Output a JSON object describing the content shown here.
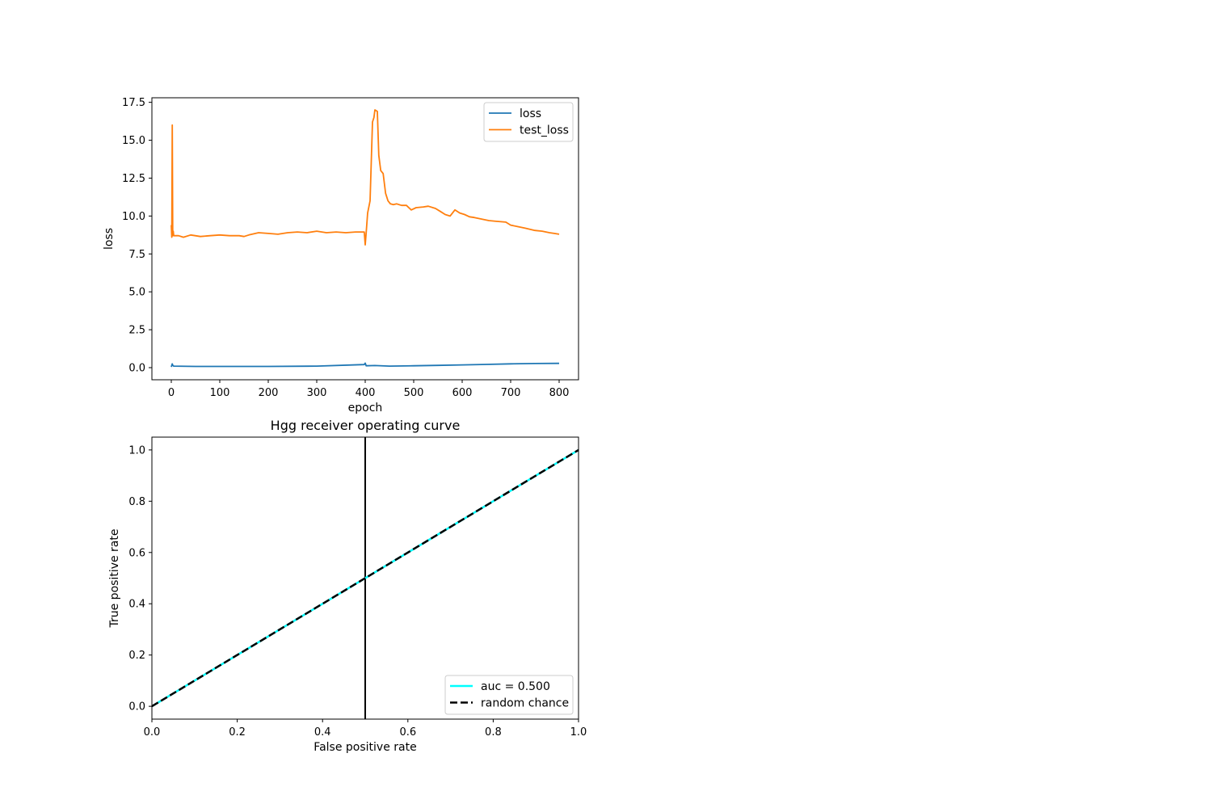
{
  "chart_data": [
    {
      "type": "line",
      "title": "",
      "xlabel": "epoch",
      "ylabel": "loss",
      "xlim": [
        -40,
        840
      ],
      "ylim": [
        -0.8,
        17.8
      ],
      "xticks": [
        0,
        100,
        200,
        300,
        400,
        500,
        600,
        700,
        800
      ],
      "xtick_labels": [
        "0",
        "100",
        "200",
        "300",
        "400",
        "500",
        "600",
        "700",
        "800"
      ],
      "yticks": [
        0,
        2.5,
        5,
        7.5,
        10,
        12.5,
        15,
        17.5
      ],
      "ytick_labels": [
        "0.0",
        "2.5",
        "5.0",
        "7.5",
        "10.0",
        "12.5",
        "15.0",
        "17.5"
      ],
      "grid": false,
      "legend_position": "upper right",
      "series": [
        {
          "name": "loss",
          "color": "#1f77b4",
          "x": [
            0,
            2,
            3,
            5,
            50,
            100,
            200,
            300,
            398,
            400,
            402,
            420,
            450,
            500,
            550,
            600,
            650,
            700,
            750,
            800
          ],
          "y": [
            0.05,
            0.25,
            0.15,
            0.1,
            0.08,
            0.08,
            0.08,
            0.1,
            0.2,
            0.3,
            0.12,
            0.14,
            0.1,
            0.12,
            0.15,
            0.18,
            0.21,
            0.25,
            0.27,
            0.28
          ]
        },
        {
          "name": "test_loss",
          "color": "#ff7f0e",
          "x": [
            0,
            1,
            2,
            3,
            4,
            5,
            15,
            25,
            40,
            60,
            80,
            100,
            120,
            140,
            150,
            160,
            180,
            200,
            220,
            240,
            260,
            280,
            300,
            320,
            340,
            360,
            380,
            398,
            400,
            402,
            405,
            410,
            415,
            418,
            420,
            425,
            428,
            432,
            437,
            442,
            447,
            452,
            458,
            465,
            475,
            485,
            495,
            505,
            520,
            530,
            545,
            555,
            565,
            575,
            585,
            595,
            605,
            615,
            625,
            640,
            655,
            670,
            690,
            700,
            715,
            730,
            750,
            765,
            780,
            790,
            800
          ],
          "y": [
            9.4,
            8.6,
            16.0,
            8.7,
            9.0,
            8.7,
            8.7,
            8.6,
            8.75,
            8.65,
            8.7,
            8.75,
            8.7,
            8.7,
            8.65,
            8.75,
            8.9,
            8.85,
            8.8,
            8.9,
            8.95,
            8.9,
            9.0,
            8.9,
            8.95,
            8.9,
            8.95,
            8.95,
            8.1,
            8.9,
            10.2,
            11.0,
            16.2,
            16.5,
            17.0,
            16.9,
            14.0,
            13.0,
            12.8,
            11.5,
            11.0,
            10.8,
            10.75,
            10.8,
            10.7,
            10.7,
            10.4,
            10.55,
            10.6,
            10.65,
            10.5,
            10.3,
            10.1,
            10.0,
            10.4,
            10.2,
            10.1,
            9.95,
            9.9,
            9.8,
            9.7,
            9.65,
            9.6,
            9.4,
            9.3,
            9.2,
            9.05,
            9.0,
            8.9,
            8.85,
            8.8
          ]
        }
      ]
    },
    {
      "type": "line",
      "title": "Hgg receiver operating curve",
      "xlabel": "False positive rate",
      "ylabel": "True positive rate",
      "xlim": [
        0.0,
        1.0
      ],
      "ylim": [
        -0.05,
        1.05
      ],
      "xticks": [
        0,
        0.2,
        0.4,
        0.6,
        0.8,
        1.0
      ],
      "xtick_labels": [
        "0.0",
        "0.2",
        "0.4",
        "0.6",
        "0.8",
        "1.0"
      ],
      "yticks": [
        0,
        0.2,
        0.4,
        0.6,
        0.8,
        1.0
      ],
      "ytick_labels": [
        "0.0",
        "0.2",
        "0.4",
        "0.6",
        "0.8",
        "1.0"
      ],
      "grid": false,
      "legend_position": "lower right",
      "vertical_line_x": 0.5,
      "series": [
        {
          "name": "auc = 0.500",
          "color": "#00ffff",
          "style": "solid",
          "x": [
            0,
            1
          ],
          "y": [
            0,
            1
          ]
        },
        {
          "name": "random chance",
          "color": "#000000",
          "style": "dashed",
          "x": [
            0,
            1
          ],
          "y": [
            0,
            1
          ]
        }
      ]
    }
  ]
}
